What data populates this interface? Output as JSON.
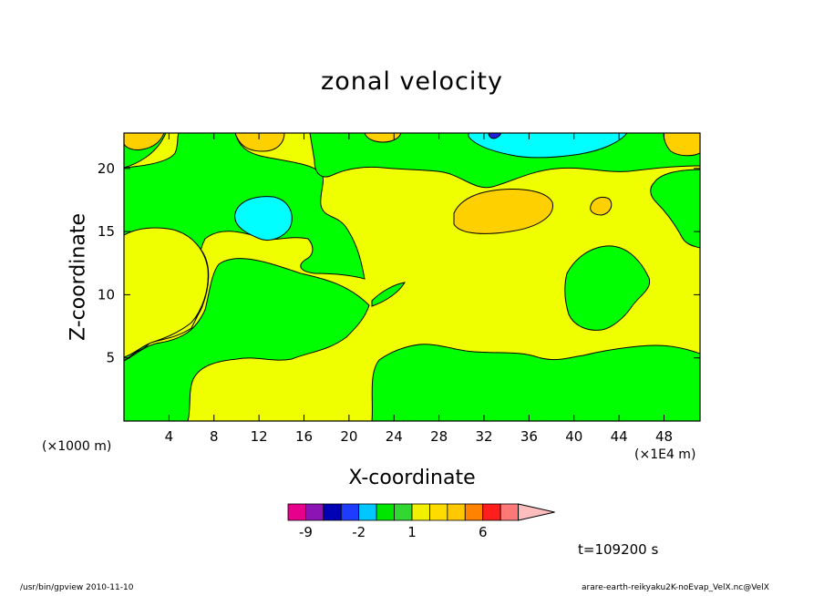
{
  "chart_data": {
    "type": "heatmap",
    "title": "zonal velocity",
    "xlabel": "X-coordinate",
    "ylabel": "Z-coordinate",
    "x_unit_left": "(×1000 m)",
    "x_unit_right": "(×1E4 m)",
    "x_ticks": [
      "4",
      "8",
      "12",
      "16",
      "20",
      "24",
      "28",
      "32",
      "36",
      "40",
      "44",
      "48"
    ],
    "y_ticks": [
      "5",
      "10",
      "15",
      "20"
    ],
    "xlim": [
      0,
      51.2
    ],
    "ylim": [
      0,
      22.8
    ],
    "time_label": "t=109200 s",
    "colorbar": {
      "levels": [
        -12,
        -9,
        -6,
        -3,
        -2,
        -1,
        0,
        1,
        2,
        3,
        4,
        6,
        9,
        12,
        15
      ],
      "colors": [
        "#e6008c",
        "#8c14b4",
        "#0000b4",
        "#1e3cff",
        "#00c8ff",
        "#00e600",
        "#32d732",
        "#f0f000",
        "#ffdc00",
        "#ffc800",
        "#ff8200",
        "#ff1e1e",
        "#ff7878",
        "#ffbebe"
      ],
      "tick_labels": [
        "-9",
        "-2",
        "1",
        "6"
      ]
    },
    "colors": {
      "green": "#00ff00",
      "yellow": "#f0ff00",
      "orange": "#ffd000",
      "cyan": "#00ffff",
      "blue": "#2020e0"
    }
  },
  "footer": {
    "left": "/usr/bin/gpview  2010-11-10",
    "right": "arare-earth-reikyaku2K-noEvap_VelX.nc@VelX"
  }
}
